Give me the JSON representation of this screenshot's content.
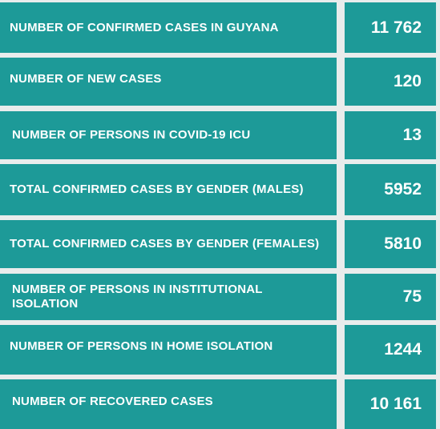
{
  "rows": [
    {
      "label": "NUMBER OF CONFIRMED CASES IN GUYANA",
      "value": "11 762"
    },
    {
      "label": "NUMBER OF NEW CASES",
      "value": "120"
    },
    {
      "label": "NUMBER OF PERSONS  IN COVID-19 ICU",
      "value": "13"
    },
    {
      "label": "TOTAL CONFIRMED CASES BY GENDER (MALES)",
      "value": "5952"
    },
    {
      "label": "TOTAL CONFIRMED CASES BY GENDER (FEMALES)",
      "value": "5810"
    },
    {
      "label": "NUMBER OF PERSONS IN INSTITUTIONAL ISOLATION",
      "value": "75"
    },
    {
      "label": "NUMBER OF PERSONS IN HOME ISOLATION",
      "value": "1244"
    },
    {
      "label": "NUMBER OF RECOVERED CASES",
      "value": "10 161"
    }
  ],
  "colors": {
    "cell": "#1d9a98",
    "text": "#ffffff",
    "background": "#e9ecec"
  }
}
